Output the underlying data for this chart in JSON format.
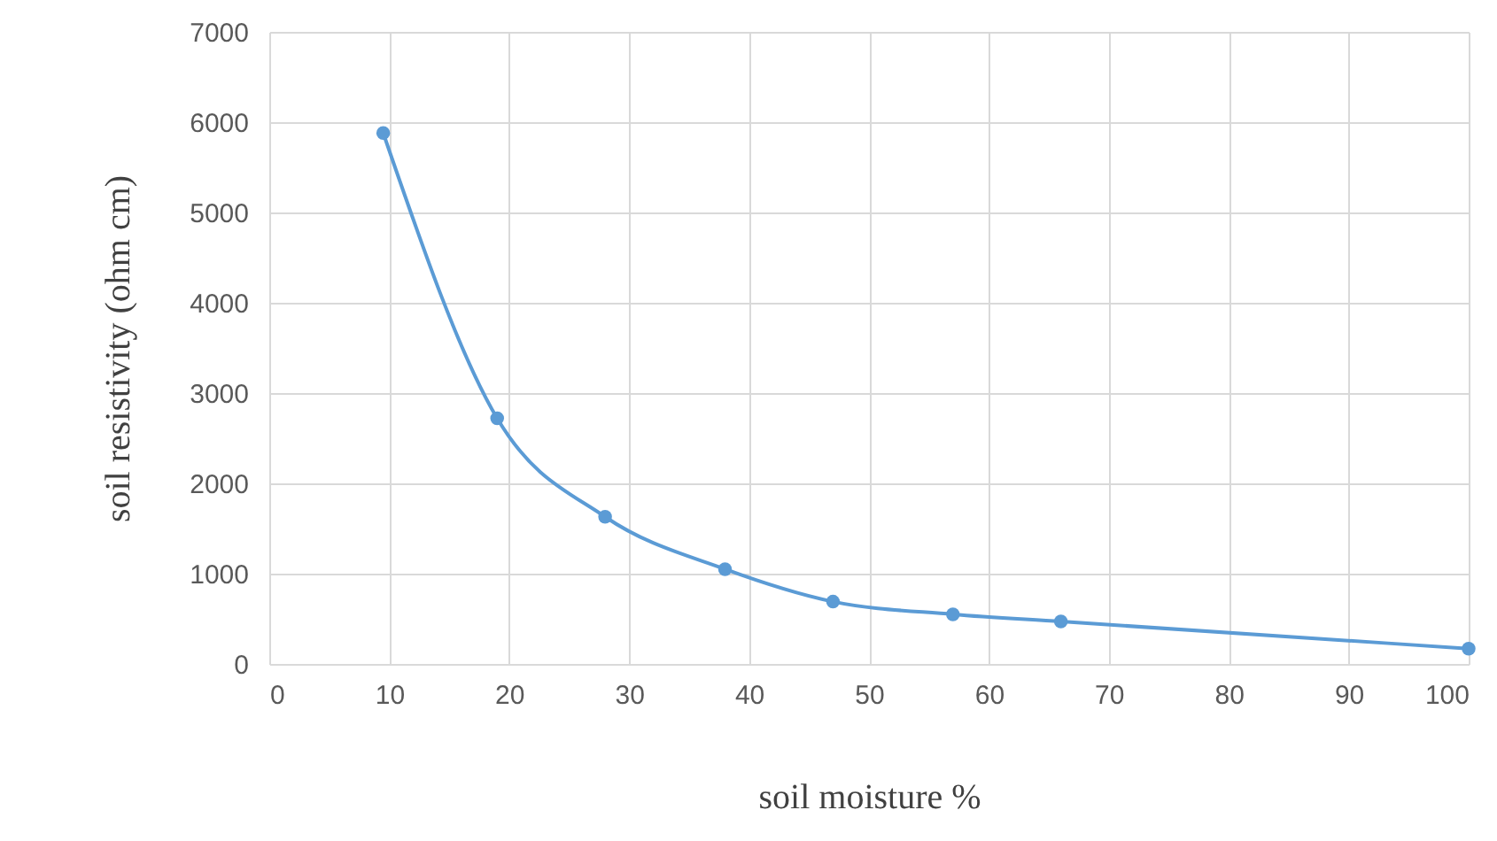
{
  "chart_data": {
    "type": "line",
    "xlabel": "soil moisture %",
    "ylabel": "soil resistivity (ohm cm)",
    "x": [
      9.5,
      19,
      28,
      38,
      47,
      57,
      66,
      100
    ],
    "series": [
      {
        "color": "#5b9bd5",
        "values": [
          5880,
          2720,
          1630,
          1050,
          690,
          550,
          470,
          170
        ]
      }
    ],
    "xlim": [
      0,
      100
    ],
    "xticks": [
      0,
      10,
      20,
      30,
      40,
      50,
      60,
      70,
      80,
      90,
      100
    ],
    "ylim": [
      0,
      7000
    ],
    "yticks": [
      0,
      1000,
      2000,
      3000,
      4000,
      5000,
      6000,
      7000
    ],
    "grid": true,
    "marker": "circle",
    "line_style": "solid"
  }
}
